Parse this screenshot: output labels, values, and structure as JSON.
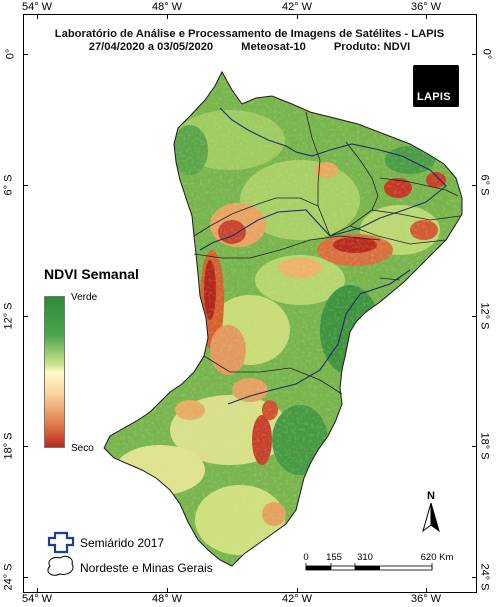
{
  "header": {
    "line1": "Laboratório de Análise e Processamento de Imagens de Satélites - LAPIS",
    "dates": "27/04/2020  a  03/05/2020",
    "satellite": "Meteosat-10",
    "product": "Produto: NDVI"
  },
  "logo": {
    "text": "LAPIS",
    "icon": "satellite-icon"
  },
  "longitude_labels": [
    "54° W",
    "48° W",
    "42° W",
    "36° W"
  ],
  "latitude_labels": [
    "0°",
    "6° S",
    "12° S",
    "18° S",
    "24° S"
  ],
  "legend": {
    "title": "NDVI Semanal",
    "top_label": "Verde",
    "bottom_label": "Seco",
    "colors": [
      "#2e8b3a",
      "#c9e58c",
      "#fffacc",
      "#e07a4a",
      "#b8281e"
    ]
  },
  "layers": {
    "semiarido_label": "Semiárido 2017",
    "semiarido_color": "#1a3f8f",
    "nordeste_label": "Nordeste e Minas Gerais"
  },
  "north_arrow": {
    "label": "N",
    "icon": "north-arrow-icon"
  },
  "scale_bar": {
    "labels": [
      "0",
      "155",
      "310",
      "620 Km"
    ]
  }
}
